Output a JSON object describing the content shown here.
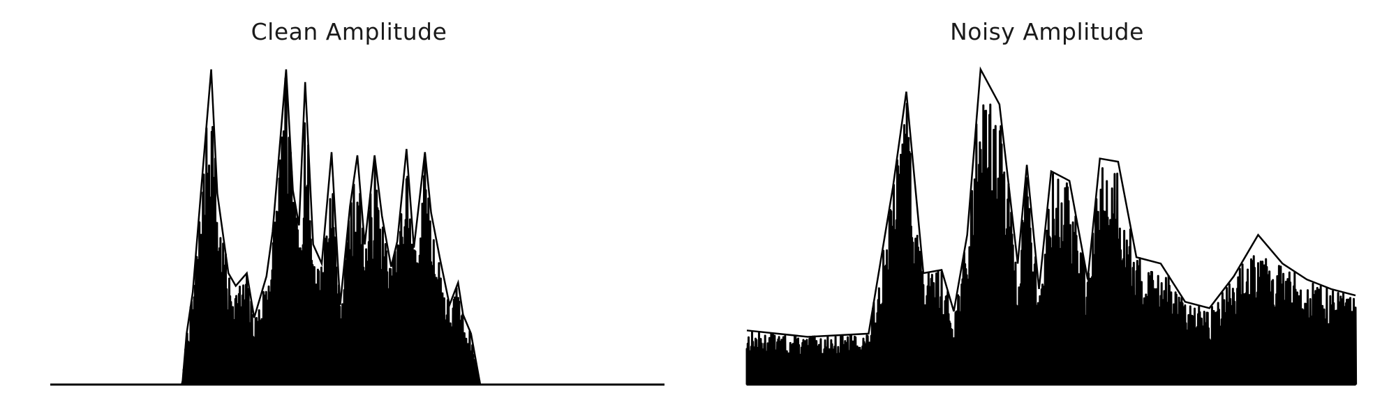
{
  "colors": {
    "background": "#ffffff",
    "waveform": "#000000",
    "title_text": "#1a1a1a"
  },
  "chart_data": [
    {
      "type": "line",
      "title": "Clean Amplitude",
      "axes_visible": false,
      "grid": false,
      "legend": "none",
      "baseline": 0,
      "ylim": [
        0,
        1.0
      ],
      "samples": 700,
      "envelope": [
        {
          "x": 0.0,
          "y": 0.0
        },
        {
          "x": 0.215,
          "y": 0.0
        },
        {
          "x": 0.222,
          "y": 0.16
        },
        {
          "x": 0.232,
          "y": 0.29
        },
        {
          "x": 0.246,
          "y": 0.62
        },
        {
          "x": 0.262,
          "y": 0.99
        },
        {
          "x": 0.272,
          "y": 0.6
        },
        {
          "x": 0.29,
          "y": 0.35
        },
        {
          "x": 0.302,
          "y": 0.31
        },
        {
          "x": 0.32,
          "y": 0.35
        },
        {
          "x": 0.332,
          "y": 0.21
        },
        {
          "x": 0.352,
          "y": 0.34
        },
        {
          "x": 0.362,
          "y": 0.48
        },
        {
          "x": 0.384,
          "y": 0.99
        },
        {
          "x": 0.395,
          "y": 0.61
        },
        {
          "x": 0.405,
          "y": 0.5
        },
        {
          "x": 0.415,
          "y": 0.95
        },
        {
          "x": 0.428,
          "y": 0.44
        },
        {
          "x": 0.442,
          "y": 0.38
        },
        {
          "x": 0.458,
          "y": 0.73
        },
        {
          "x": 0.472,
          "y": 0.25
        },
        {
          "x": 0.488,
          "y": 0.56
        },
        {
          "x": 0.5,
          "y": 0.72
        },
        {
          "x": 0.512,
          "y": 0.44
        },
        {
          "x": 0.528,
          "y": 0.72
        },
        {
          "x": 0.54,
          "y": 0.53
        },
        {
          "x": 0.555,
          "y": 0.37
        },
        {
          "x": 0.565,
          "y": 0.45
        },
        {
          "x": 0.58,
          "y": 0.74
        },
        {
          "x": 0.592,
          "y": 0.43
        },
        {
          "x": 0.61,
          "y": 0.73
        },
        {
          "x": 0.62,
          "y": 0.54
        },
        {
          "x": 0.634,
          "y": 0.4
        },
        {
          "x": 0.65,
          "y": 0.25
        },
        {
          "x": 0.664,
          "y": 0.32
        },
        {
          "x": 0.672,
          "y": 0.22
        },
        {
          "x": 0.685,
          "y": 0.16
        },
        {
          "x": 0.7,
          "y": 0.0
        },
        {
          "x": 1.0,
          "y": 0.0
        }
      ]
    },
    {
      "type": "line",
      "title": "Noisy Amplitude",
      "axes_visible": false,
      "grid": false,
      "legend": "none",
      "baseline": 0,
      "ylim": [
        0,
        1.0
      ],
      "samples": 700,
      "envelope": [
        {
          "x": 0.0,
          "y": 0.17
        },
        {
          "x": 0.1,
          "y": 0.15
        },
        {
          "x": 0.2,
          "y": 0.16
        },
        {
          "x": 0.24,
          "y": 0.62
        },
        {
          "x": 0.262,
          "y": 0.92
        },
        {
          "x": 0.29,
          "y": 0.35
        },
        {
          "x": 0.32,
          "y": 0.36
        },
        {
          "x": 0.34,
          "y": 0.23
        },
        {
          "x": 0.362,
          "y": 0.47
        },
        {
          "x": 0.384,
          "y": 0.99
        },
        {
          "x": 0.415,
          "y": 0.88
        },
        {
          "x": 0.445,
          "y": 0.38
        },
        {
          "x": 0.46,
          "y": 0.69
        },
        {
          "x": 0.48,
          "y": 0.3
        },
        {
          "x": 0.5,
          "y": 0.67
        },
        {
          "x": 0.53,
          "y": 0.64
        },
        {
          "x": 0.56,
          "y": 0.33
        },
        {
          "x": 0.58,
          "y": 0.71
        },
        {
          "x": 0.61,
          "y": 0.7
        },
        {
          "x": 0.64,
          "y": 0.4
        },
        {
          "x": 0.68,
          "y": 0.38
        },
        {
          "x": 0.72,
          "y": 0.26
        },
        {
          "x": 0.76,
          "y": 0.24
        },
        {
          "x": 0.8,
          "y": 0.34
        },
        {
          "x": 0.84,
          "y": 0.47
        },
        {
          "x": 0.88,
          "y": 0.38
        },
        {
          "x": 0.92,
          "y": 0.33
        },
        {
          "x": 0.96,
          "y": 0.3
        },
        {
          "x": 1.0,
          "y": 0.28
        }
      ]
    }
  ]
}
